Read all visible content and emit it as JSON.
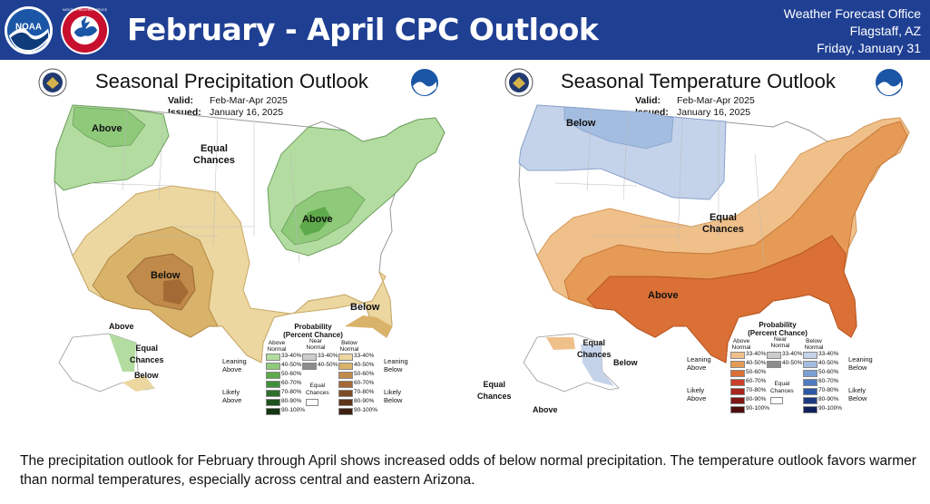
{
  "header": {
    "title": "February - April CPC Outlook",
    "office_line1": "Weather Forecast Office",
    "office_line2": "Flagstaff, AZ",
    "office_line3": "Friday, January 31",
    "bg_color": "#1f3f93"
  },
  "logos": {
    "noaa_text": "NOAA",
    "nws_text": "NATIONAL WEATHER SERVICE"
  },
  "precip": {
    "title": "Seasonal Precipitation Outlook",
    "valid_label": "Valid:",
    "valid_value": "Feb-Mar-Apr 2025",
    "issued_label": "Issued:",
    "issued_value": "January 16, 2025",
    "labels": {
      "above_nw": "Above",
      "equal": "Equal\nChances",
      "above_ohio": "Above",
      "below_sw": "Below",
      "below_fl": "Below",
      "ak_above": "Above",
      "ak_equal": "Equal\nChances",
      "ak_below": "Below"
    },
    "legend": {
      "title": "Probability\n(Percent Chance)",
      "col_above": "Above\nNormal",
      "col_near": "Near\nNormal",
      "col_below": "Below\nNormal",
      "leaning_left": "Leaning\nAbove",
      "likely_left": "Likely\nAbove",
      "leaning_right": "Leaning\nBelow",
      "likely_right": "Likely\nBelow",
      "equal": "Equal\nChances",
      "ranges": [
        "33-40%",
        "40-50%",
        "50-60%",
        "60-70%",
        "70-80%",
        "80-90%",
        "90-100%"
      ],
      "near_ranges": [
        "33-40%",
        "40-50%"
      ],
      "above_colors": [
        "#b3dca0",
        "#8fc97a",
        "#5eaa4a",
        "#3f8f3a",
        "#2c6e2a",
        "#1f5220",
        "#123512"
      ],
      "near_colors": [
        "#cccccc",
        "#8c8c8c"
      ],
      "below_colors": [
        "#ecd7a0",
        "#d9b36a",
        "#c08a4a",
        "#a36a35",
        "#7f4d25",
        "#5f3519",
        "#3e2010"
      ]
    }
  },
  "temp": {
    "title": "Seasonal Temperature Outlook",
    "valid_label": "Valid:",
    "valid_value": "Feb-Mar-Apr 2025",
    "issued_label": "Issued:",
    "issued_value": "January 16, 2025",
    "labels": {
      "below_n": "Below",
      "equal": "Equal\nChances",
      "above_s": "Above",
      "ak_equal1": "Equal\nChances",
      "ak_below": "Below",
      "ak_equal2": "Equal\nChances",
      "ak_above": "Above"
    },
    "legend": {
      "title": "Probability\n(Percent Chance)",
      "col_above": "Above\nNormal",
      "col_near": "Near\nNormal",
      "col_below": "Below\nNormal",
      "leaning_left": "Leaning\nAbove",
      "likely_left": "Likely\nAbove",
      "leaning_right": "Leaning\nBelow",
      "likely_right": "Likely\nBelow",
      "equal": "Equal\nChances",
      "ranges": [
        "33-40%",
        "40-50%",
        "50-60%",
        "60-70%",
        "70-80%",
        "80-90%",
        "90-100%"
      ],
      "near_ranges": [
        "33-40%",
        "40-50%"
      ],
      "above_colors": [
        "#f0c08a",
        "#e59a55",
        "#da7035",
        "#c9402a",
        "#a8241f",
        "#7e1616",
        "#500d0d"
      ],
      "near_colors": [
        "#cccccc",
        "#8c8c8c"
      ],
      "below_colors": [
        "#c5d3ea",
        "#a3bde0",
        "#7aa0d2",
        "#4f7cc0",
        "#2e57a4",
        "#1d3a80",
        "#10205a"
      ]
    }
  },
  "caption": "The precipitation outlook for February through April shows increased odds of below normal precipitation. The temperature outlook favors warmer than normal temperatures, especially across central and eastern Arizona."
}
